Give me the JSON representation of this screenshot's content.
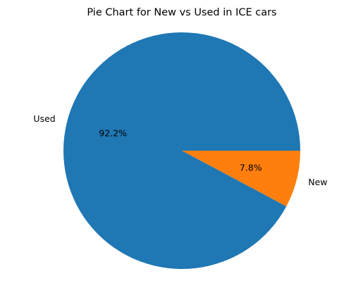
{
  "chart_data": {
    "type": "pie",
    "title": "Pie Chart for New vs Used in ICE cars",
    "categories": [
      "New",
      "Used"
    ],
    "values": [
      7.8,
      92.2
    ],
    "percent_labels": [
      "7.8%",
      "92.2%"
    ],
    "colors": [
      "#ff7f0e",
      "#1f77b4"
    ],
    "start_angle_deg": 0,
    "direction": "clockwise",
    "legend": "none"
  }
}
